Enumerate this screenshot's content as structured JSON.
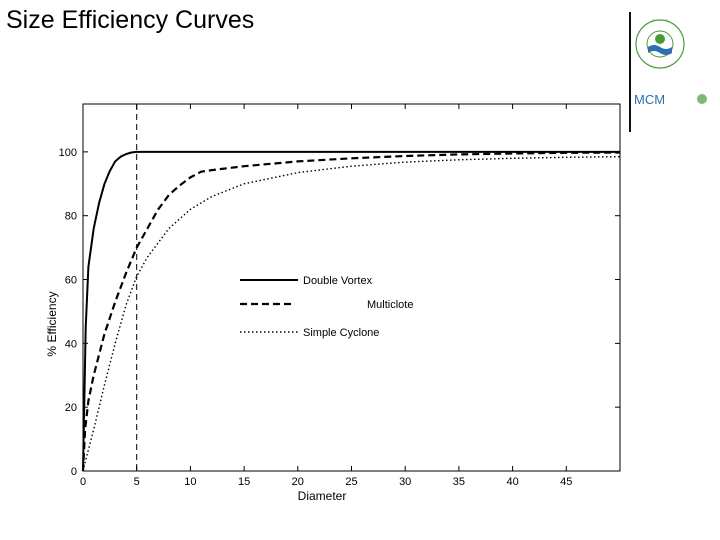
{
  "slide": {
    "title": "Size Efficiency Curves"
  },
  "logo": {
    "seal_text": "UNITED STATES ENVIRONMENTAL PROTECTION AGENCY",
    "wordmark": "MCM"
  },
  "colors": {
    "logo_green": "#4a9a3a",
    "logo_blue": "#2a6fb0",
    "ink": "#000000"
  },
  "chart_data": {
    "type": "line",
    "title": "",
    "xlabel": "Diameter",
    "ylabel": "% Efficiency",
    "xlim": [
      0,
      50
    ],
    "ylim": [
      0,
      115
    ],
    "x_ticks": [
      0,
      5,
      10,
      15,
      20,
      25,
      30,
      35,
      40,
      45
    ],
    "y_ticks": [
      0,
      20,
      40,
      60,
      80,
      100
    ],
    "grid": false,
    "legend_position": "center",
    "vertical_reference_line_x": 5,
    "series": [
      {
        "name": "Double Vortex",
        "line_style": "solid",
        "x": [
          0,
          0.25,
          0.5,
          1,
          1.5,
          2,
          2.5,
          3,
          3.5,
          4,
          4.5,
          5,
          10,
          20,
          30,
          40,
          50
        ],
        "y": [
          0,
          45,
          64,
          76,
          84,
          90,
          94,
          97,
          98.5,
          99.3,
          99.8,
          100,
          100,
          100,
          100,
          100,
          100
        ]
      },
      {
        "name": "Multiclote",
        "line_style": "dashed",
        "x": [
          0,
          0.2,
          0.5,
          1,
          2,
          3,
          4,
          5,
          6,
          7,
          8,
          9,
          10,
          11,
          12,
          15,
          20,
          25,
          30,
          35,
          40,
          45,
          50
        ],
        "y": [
          0,
          13,
          22,
          30,
          43,
          53,
          62,
          70,
          76,
          82,
          86.5,
          89.5,
          92,
          93.8,
          94.3,
          95.5,
          97,
          98,
          98.7,
          99.2,
          99.5,
          99.7,
          99.8
        ]
      },
      {
        "name": "Simple Cyclone",
        "line_style": "dotted",
        "x": [
          0,
          0.3,
          1,
          2,
          3,
          4,
          5,
          6,
          8,
          10,
          12,
          15,
          20,
          25,
          30,
          35,
          40,
          45,
          50
        ],
        "y": [
          0,
          4,
          13,
          27,
          40,
          52,
          61,
          67,
          76,
          82,
          86,
          90,
          93.5,
          95.5,
          96.8,
          97.5,
          98,
          98.3,
          98.5
        ]
      }
    ]
  }
}
